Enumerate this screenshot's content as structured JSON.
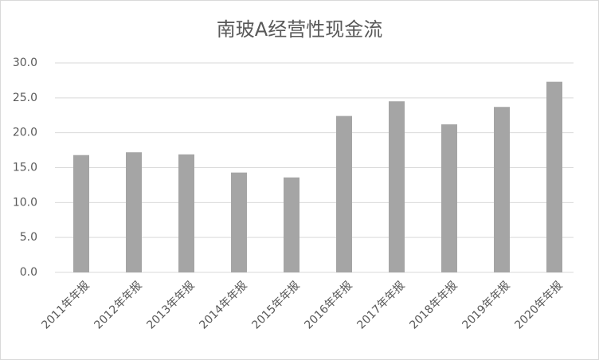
{
  "chart_data": {
    "type": "bar",
    "title": "南玻A经营性现金流",
    "categories": [
      "2011年年报",
      "2012年年报",
      "2013年年报",
      "2014年年报",
      "2015年年报",
      "2016年年报",
      "2017年年报",
      "2018年年报",
      "2019年年报",
      "2020年年报"
    ],
    "values": [
      16.8,
      17.2,
      16.9,
      14.3,
      13.6,
      22.4,
      24.5,
      21.2,
      23.7,
      27.3
    ],
    "color": "#a5a5a5",
    "ylim": [
      0,
      30
    ],
    "yticks": [
      {
        "value": 0,
        "label": "0.0"
      },
      {
        "value": 5,
        "label": "5.0"
      },
      {
        "value": 10,
        "label": "10.0"
      },
      {
        "value": 15,
        "label": "15.0"
      },
      {
        "value": 20,
        "label": "20.0"
      },
      {
        "value": 25,
        "label": "25.0"
      },
      {
        "value": 30,
        "label": "30.0"
      }
    ],
    "grid": true
  }
}
